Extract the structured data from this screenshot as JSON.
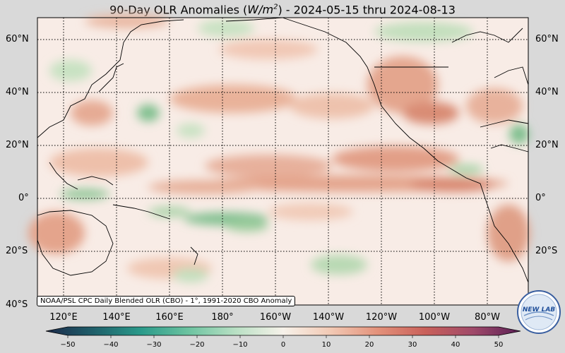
{
  "header": {
    "title_prefix": "90-Day OLR Anomalies (",
    "unit_base": "W/m",
    "unit_exp": "2",
    "title_suffix": ") - 2024-05-15 thru 2024-08-13"
  },
  "map": {
    "lat_labels": [
      "60°N",
      "40°N",
      "20°N",
      "0°",
      "20°S",
      "40°S"
    ],
    "lon_labels": [
      "120°E",
      "140°E",
      "160°E",
      "180°",
      "160°W",
      "140°W",
      "120°W",
      "100°W",
      "80°W"
    ],
    "credit": "NOAA/PSL CPC Daily Blended OLR (CBO) - 1°, 1991-2020 CBO Anomaly"
  },
  "colorbar": {
    "ticks": [
      "−50",
      "−40",
      "−30",
      "−20",
      "−10",
      "0",
      "10",
      "20",
      "30",
      "40",
      "50"
    ],
    "stops": [
      "#1c2a4a",
      "#1f5f6a",
      "#2a9a8a",
      "#6cc3a0",
      "#b9e0c4",
      "#f7f2ea",
      "#f2c9b4",
      "#e3917a",
      "#c9605a",
      "#a04a6a",
      "#5a1f55"
    ]
  },
  "logo": {
    "text": "NEW LAB"
  }
}
